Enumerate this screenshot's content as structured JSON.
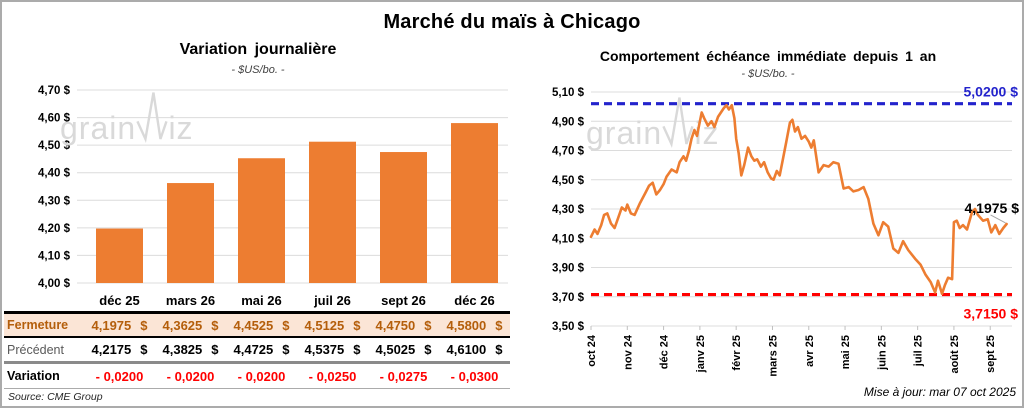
{
  "header": {
    "title": "Marché du maïs à Chicago"
  },
  "watermark": {
    "prefix": "grain",
    "suffix": "iz"
  },
  "chart_data": [
    {
      "type": "bar",
      "title": "Variation journalière",
      "subtitle": "- $US/bo. -",
      "categories": [
        "déc 25",
        "mars 26",
        "mai 26",
        "juil 26",
        "sept 26",
        "déc 26"
      ],
      "values": [
        4.1975,
        4.3625,
        4.4525,
        4.5125,
        4.475,
        4.58
      ],
      "ylim": [
        4.0,
        4.7
      ],
      "ytick_step": 0.1,
      "ytick_suffix": " $",
      "grid": true,
      "legend": "none"
    },
    {
      "type": "line",
      "title": "Comportement échéance immédiate depuis 1 an",
      "subtitle": "- $US/bo. -",
      "x_tick_labels": [
        "oct 24",
        "nov 24",
        "déc 24",
        "janv 25",
        "févr 25",
        "mars 25",
        "avr 25",
        "mai 25",
        "juin 25",
        "juil 25",
        "août 25",
        "sept 25"
      ],
      "xlim": [
        0,
        11.6
      ],
      "ylim": [
        3.5,
        5.1
      ],
      "ytick_step": 0.2,
      "ytick_suffix": " $",
      "grid": true,
      "reference_lines": [
        {
          "value": 5.02,
          "label": "5,0200 $",
          "color_key": "ref_blue",
          "label_position": "above"
        },
        {
          "value": 3.715,
          "label": "3,7150 $",
          "color_key": "ref_red",
          "label_position": "below"
        }
      ],
      "last_point_label": "4,1975 $",
      "points": [
        [
          0.0,
          4.11
        ],
        [
          0.1,
          4.16
        ],
        [
          0.18,
          4.13
        ],
        [
          0.28,
          4.19
        ],
        [
          0.36,
          4.26
        ],
        [
          0.45,
          4.27
        ],
        [
          0.55,
          4.2
        ],
        [
          0.65,
          4.17
        ],
        [
          0.75,
          4.24
        ],
        [
          0.85,
          4.31
        ],
        [
          0.95,
          4.29
        ],
        [
          1.0,
          4.33
        ],
        [
          1.1,
          4.27
        ],
        [
          1.2,
          4.26
        ],
        [
          1.35,
          4.34
        ],
        [
          1.5,
          4.41
        ],
        [
          1.6,
          4.46
        ],
        [
          1.7,
          4.48
        ],
        [
          1.8,
          4.4
        ],
        [
          1.9,
          4.43
        ],
        [
          2.0,
          4.47
        ],
        [
          2.08,
          4.52
        ],
        [
          2.22,
          4.57
        ],
        [
          2.36,
          4.55
        ],
        [
          2.44,
          4.62
        ],
        [
          2.55,
          4.66
        ],
        [
          2.62,
          4.63
        ],
        [
          2.7,
          4.7
        ],
        [
          2.77,
          4.78
        ],
        [
          2.85,
          4.84
        ],
        [
          2.92,
          4.8
        ],
        [
          3.0,
          4.9
        ],
        [
          3.05,
          4.96
        ],
        [
          3.12,
          4.92
        ],
        [
          3.22,
          4.87
        ],
        [
          3.32,
          4.9
        ],
        [
          3.4,
          4.86
        ],
        [
          3.5,
          4.93
        ],
        [
          3.58,
          4.96
        ],
        [
          3.66,
          4.99
        ],
        [
          3.73,
          5.01
        ],
        [
          3.8,
          4.98
        ],
        [
          3.88,
          5.01
        ],
        [
          3.95,
          4.92
        ],
        [
          4.0,
          4.78
        ],
        [
          4.07,
          4.68
        ],
        [
          4.14,
          4.53
        ],
        [
          4.22,
          4.6
        ],
        [
          4.33,
          4.72
        ],
        [
          4.42,
          4.66
        ],
        [
          4.5,
          4.63
        ],
        [
          4.58,
          4.64
        ],
        [
          4.68,
          4.59
        ],
        [
          4.77,
          4.62
        ],
        [
          4.87,
          4.55
        ],
        [
          4.96,
          4.51
        ],
        [
          5.03,
          4.5
        ],
        [
          5.12,
          4.56
        ],
        [
          5.2,
          4.53
        ],
        [
          5.28,
          4.63
        ],
        [
          5.38,
          4.76
        ],
        [
          5.48,
          4.89
        ],
        [
          5.55,
          4.91
        ],
        [
          5.62,
          4.83
        ],
        [
          5.7,
          4.86
        ],
        [
          5.8,
          4.78
        ],
        [
          5.9,
          4.8
        ],
        [
          6.0,
          4.76
        ],
        [
          6.07,
          4.72
        ],
        [
          6.14,
          4.77
        ],
        [
          6.27,
          4.55
        ],
        [
          6.41,
          4.6
        ],
        [
          6.55,
          4.59
        ],
        [
          6.68,
          4.62
        ],
        [
          6.82,
          4.61
        ],
        [
          6.96,
          4.44
        ],
        [
          7.1,
          4.45
        ],
        [
          7.23,
          4.42
        ],
        [
          7.37,
          4.43
        ],
        [
          7.51,
          4.45
        ],
        [
          7.64,
          4.37
        ],
        [
          7.78,
          4.2
        ],
        [
          7.92,
          4.12
        ],
        [
          8.05,
          4.21
        ],
        [
          8.19,
          4.18
        ],
        [
          8.33,
          4.03
        ],
        [
          8.47,
          4.0
        ],
        [
          8.6,
          4.08
        ],
        [
          8.74,
          4.02
        ],
        [
          8.93,
          3.96
        ],
        [
          9.08,
          3.92
        ],
        [
          9.22,
          3.85
        ],
        [
          9.36,
          3.8
        ],
        [
          9.48,
          3.73
        ],
        [
          9.56,
          3.81
        ],
        [
          9.67,
          3.72
        ],
        [
          9.75,
          3.78
        ],
        [
          9.84,
          3.83
        ],
        [
          9.95,
          3.82
        ],
        [
          10.0,
          4.21
        ],
        [
          10.08,
          4.22
        ],
        [
          10.16,
          4.17
        ],
        [
          10.25,
          4.19
        ],
        [
          10.36,
          4.16
        ],
        [
          10.5,
          4.28
        ],
        [
          10.58,
          4.3
        ],
        [
          10.66,
          4.26
        ],
        [
          10.8,
          4.22
        ],
        [
          10.93,
          4.23
        ],
        [
          11.03,
          4.14
        ],
        [
          11.14,
          4.19
        ],
        [
          11.25,
          4.13
        ],
        [
          11.36,
          4.17
        ],
        [
          11.45,
          4.1975
        ]
      ]
    }
  ],
  "table": {
    "columns": [
      "déc 25",
      "mars 26",
      "mai 26",
      "juil 26",
      "sept 26",
      "déc 26"
    ],
    "rows": [
      {
        "id": "fermeture",
        "label": "Fermeture",
        "values": [
          "4,1975",
          "4,3625",
          "4,4525",
          "4,5125",
          "4,4750",
          "4,5800"
        ],
        "suffix": "$"
      },
      {
        "id": "precedent",
        "label": "Précédent",
        "values": [
          "4,2175",
          "4,3825",
          "4,4725",
          "4,5375",
          "4,5025",
          "4,6100"
        ],
        "suffix": "$"
      },
      {
        "id": "variation",
        "label": "Variation",
        "values": [
          "- 0,0200",
          "- 0,0200",
          "- 0,0200",
          "- 0,0250",
          "- 0,0275",
          "- 0,0300"
        ],
        "suffix": ""
      }
    ]
  },
  "footer": {
    "source": "Source: CME Group",
    "updated": "Mise à jour: mar 07 oct 2025"
  },
  "colors": {
    "orange": "#ED7D31",
    "fermeture_bg": "#FBE5D6",
    "fermeture_text": "#B45E0B",
    "variation_text": "#FF0000",
    "precedent_label": "#595959",
    "ref_blue": "#2323CC",
    "ref_red": "#FF0000",
    "grid": "#DCDCDC",
    "watermark": "#D9D9D9",
    "border": "#ABABAB"
  }
}
